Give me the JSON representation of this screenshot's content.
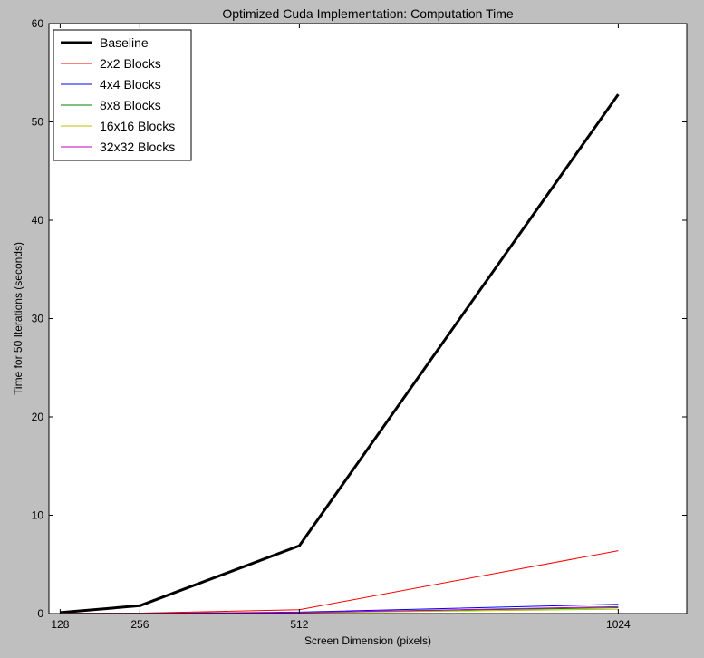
{
  "chart_data": {
    "type": "line",
    "title": "Optimized Cuda Implementation: Computation Time",
    "xlabel": "Screen Dimension (pixels)",
    "ylabel": "Time for 50 Iterations (seconds)",
    "x": [
      128,
      256,
      512,
      1024
    ],
    "xticks": [
      "128",
      "256",
      "512",
      "1024"
    ],
    "xlim": [
      110,
      1134
    ],
    "ylim": [
      0,
      60
    ],
    "yticks": [
      "0",
      "10",
      "20",
      "30",
      "40",
      "50",
      "60"
    ],
    "grid": false,
    "legend_position": "top-left",
    "series": [
      {
        "name": "Baseline",
        "color": "#000000",
        "values": [
          0.1,
          0.8,
          6.9,
          52.8
        ]
      },
      {
        "name": "2x2 Blocks",
        "color": "#ff0000",
        "values": [
          0.02,
          0.05,
          0.4,
          6.4
        ]
      },
      {
        "name": "4x4 Blocks",
        "color": "#0000ff",
        "values": [
          0.01,
          0.02,
          0.15,
          0.95
        ]
      },
      {
        "name": "8x8 Blocks",
        "color": "#008000",
        "values": [
          0.01,
          0.02,
          0.1,
          0.6
        ]
      },
      {
        "name": "16x16 Blocks",
        "color": "#bfbf00",
        "values": [
          0.01,
          0.02,
          0.08,
          0.45
        ]
      },
      {
        "name": "32x32 Blocks",
        "color": "#bf00bf",
        "values": [
          0.01,
          0.02,
          0.1,
          0.7
        ]
      }
    ]
  }
}
